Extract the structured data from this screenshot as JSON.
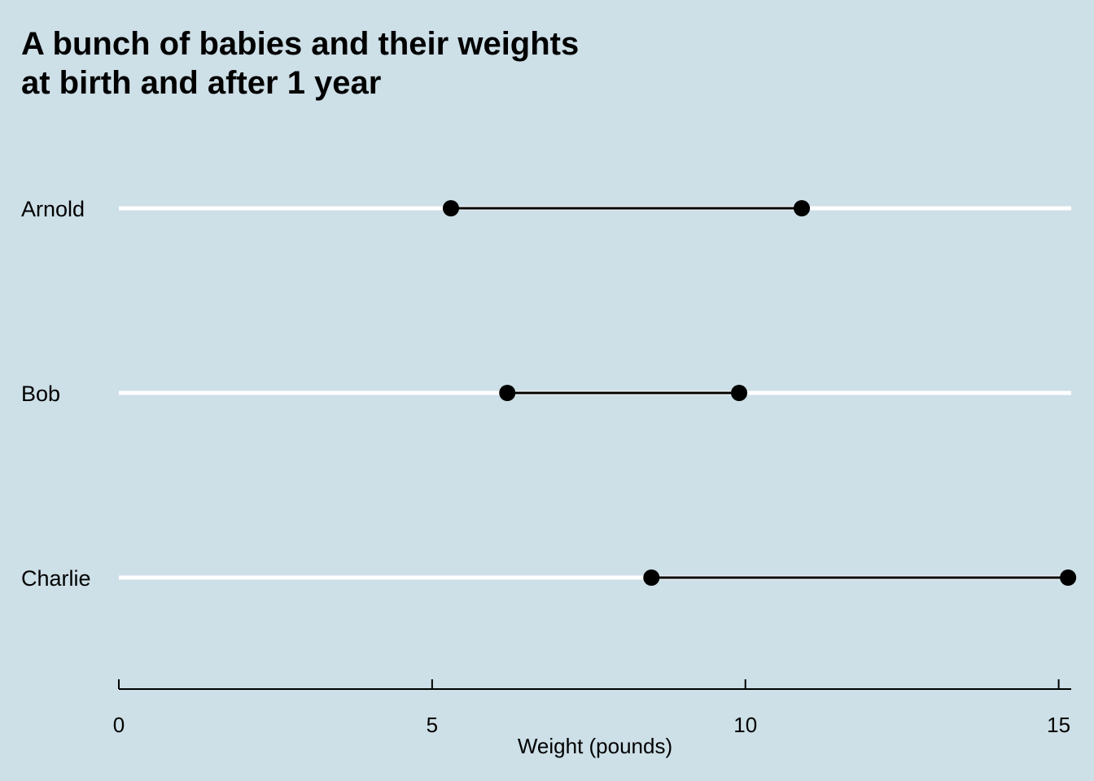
{
  "chart_data": {
    "type": "dumbbell",
    "title_lines": [
      "A bunch of babies and their weights",
      "at birth and after 1 year"
    ],
    "xlabel": "Weight (pounds)",
    "ylabel": "",
    "xlim": [
      0,
      15.2
    ],
    "xticks": [
      0,
      5,
      10,
      15
    ],
    "categories": [
      "Arnold",
      "Bob",
      "Charlie"
    ],
    "rows": [
      {
        "name": "Arnold",
        "start": 5.3,
        "end": 10.9
      },
      {
        "name": "Bob",
        "start": 6.2,
        "end": 9.9
      },
      {
        "name": "Charlie",
        "start": 8.5,
        "end": 15.15
      }
    ],
    "grid": "horizontal",
    "colors": {
      "background": "#cddfe7",
      "gridline": "#ffffff",
      "marks": "#000000"
    }
  }
}
